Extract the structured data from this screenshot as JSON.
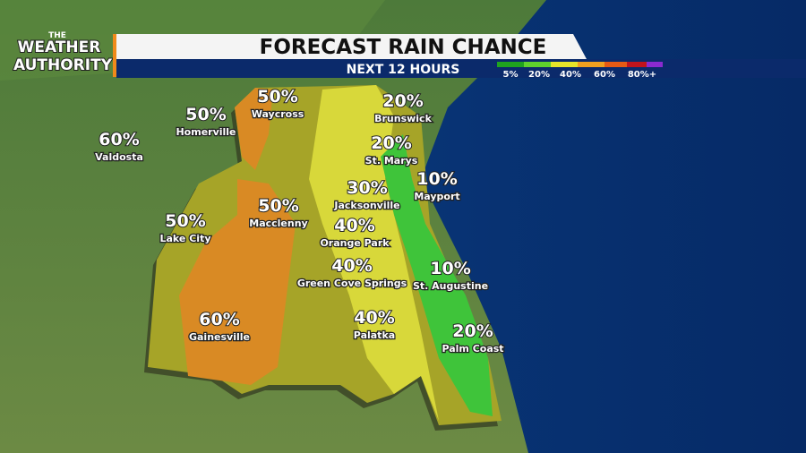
{
  "logo": {
    "line1": "THE",
    "line2": "WEATHER",
    "line3": "AUTHORITY"
  },
  "header": {
    "title": "FORECAST RAIN CHANCE",
    "subtitle": "NEXT 12 HOURS"
  },
  "legend": {
    "labels": [
      "5%",
      "20%",
      "40%",
      "60%",
      "80%+"
    ]
  },
  "cities": [
    {
      "name": "Waycross",
      "chance": "50%"
    },
    {
      "name": "Homerville",
      "chance": "50%"
    },
    {
      "name": "Valdosta",
      "chance": "60%"
    },
    {
      "name": "Brunswick",
      "chance": "20%"
    },
    {
      "name": "St. Marys",
      "chance": "20%"
    },
    {
      "name": "Mayport",
      "chance": "10%"
    },
    {
      "name": "Jacksonville",
      "chance": "30%"
    },
    {
      "name": "Macclenny",
      "chance": "50%"
    },
    {
      "name": "Lake City",
      "chance": "50%"
    },
    {
      "name": "Orange Park",
      "chance": "40%"
    },
    {
      "name": "Green Cove Springs",
      "chance": "40%"
    },
    {
      "name": "St. Augustine",
      "chance": "10%"
    },
    {
      "name": "Gainesville",
      "chance": "60%"
    },
    {
      "name": "Palatka",
      "chance": "40%"
    },
    {
      "name": "Palm Coast",
      "chance": "20%"
    }
  ]
}
